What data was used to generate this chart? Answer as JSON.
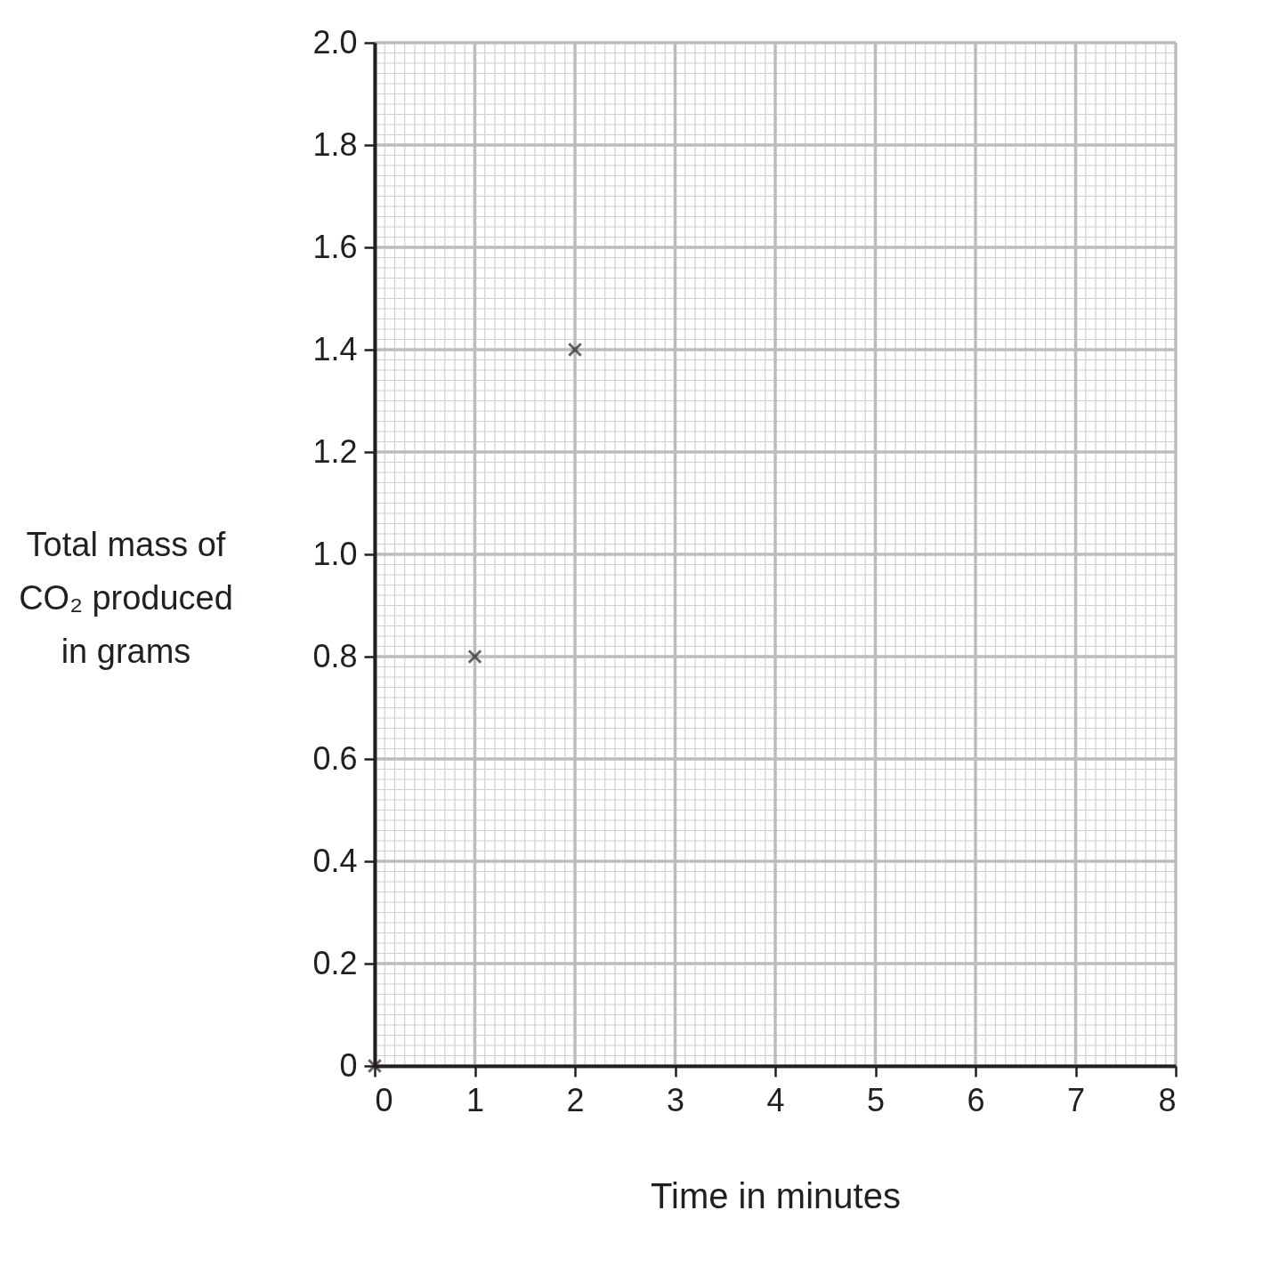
{
  "chart_data": {
    "type": "scatter",
    "xlabel": "Time in minutes",
    "ylabel": "Total mass of CO₂ produced in grams",
    "x": [
      0,
      1,
      2
    ],
    "series": [
      {
        "color": "#231f20",
        "values": [
          0,
          0.8,
          1.4
        ]
      }
    ],
    "marker": "cross",
    "grid": true,
    "xlim": [
      0,
      8
    ],
    "xticks": [
      0,
      1,
      2,
      3,
      4,
      5,
      6,
      7,
      8
    ],
    "ylim": [
      0,
      2.0
    ],
    "yticks": [
      {
        "value": 0,
        "label": "0"
      },
      {
        "value": 0.2,
        "label": "0.2"
      },
      {
        "value": 0.4,
        "label": "0.4"
      },
      {
        "value": 0.6,
        "label": "0.6"
      },
      {
        "value": 0.8,
        "label": "0.8"
      },
      {
        "value": 1.0,
        "label": "1.0"
      },
      {
        "value": 1.2,
        "label": "1.2"
      },
      {
        "value": 1.4,
        "label": "1.4"
      },
      {
        "value": 1.6,
        "label": "1.6"
      },
      {
        "value": 1.8,
        "label": "1.8"
      },
      {
        "value": 2.0,
        "label": "2.0"
      }
    ]
  }
}
